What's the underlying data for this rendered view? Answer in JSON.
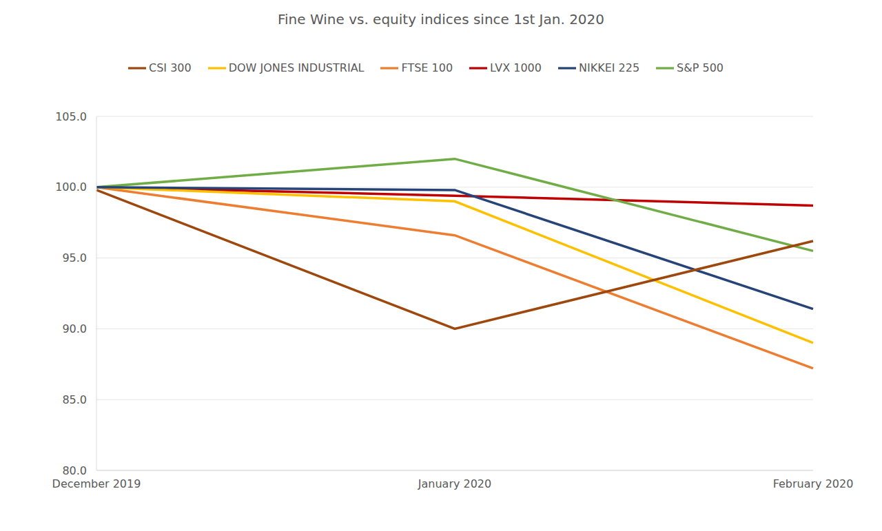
{
  "chart_data": {
    "type": "line",
    "title": "Fine Wine vs. equity indices since 1st Jan. 2020",
    "categories": [
      "December 2019",
      "January 2020",
      "February 2020"
    ],
    "series": [
      {
        "name": "LVX 1000",
        "color": "#c00000",
        "values": [
          100.0,
          99.4,
          98.7
        ]
      },
      {
        "name": "FTSE 100",
        "color": "#ed7d31",
        "values": [
          100.0,
          96.6,
          87.2
        ]
      },
      {
        "name": "DOW JONES INDUSTRIAL",
        "color": "#ffc000",
        "values": [
          100.0,
          99.0,
          89.0
        ]
      },
      {
        "name": "S&P 500",
        "color": "#70ad47",
        "values": [
          100.0,
          102.0,
          95.5
        ]
      },
      {
        "name": "NIKKEI 225",
        "color": "#264478",
        "values": [
          100.0,
          99.8,
          91.4
        ]
      },
      {
        "name": "CSI 300",
        "color": "#9e480e",
        "values": [
          99.8,
          90.0,
          96.2
        ]
      }
    ],
    "ylim": [
      80,
      105
    ],
    "yticks": [
      {
        "value": 80,
        "label": "80.0"
      },
      {
        "value": 85,
        "label": "85.0"
      },
      {
        "value": 90,
        "label": "90.0"
      },
      {
        "value": 95,
        "label": "95.0"
      },
      {
        "value": 100,
        "label": "100.0"
      },
      {
        "value": 105,
        "label": "105.0"
      }
    ],
    "grid": true,
    "legend": "top"
  }
}
